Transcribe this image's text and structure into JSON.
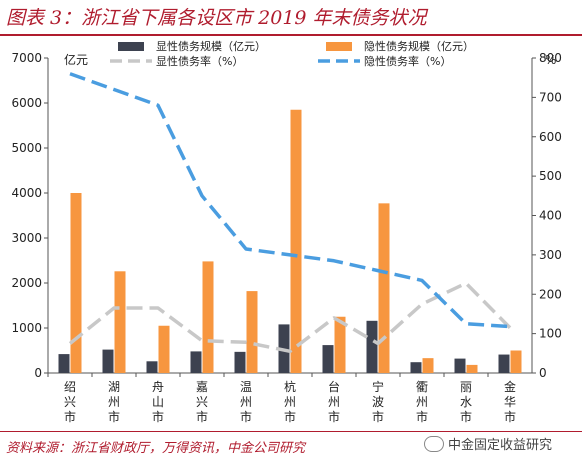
{
  "title": "图表 3：浙江省下属各设区市 2019 年末债务状况",
  "source": "资料来源：浙江省财政厅，万得资讯，中金公司研究",
  "watermark": "中金固定收益研究",
  "colors": {
    "explicit_bar": "#3d4250",
    "implicit_bar": "#f7963f",
    "explicit_rate": "#c8c8c8",
    "implicit_rate": "#4a9de0",
    "accent": "#b01c2e"
  },
  "chart_data": {
    "type": "bar",
    "categories": [
      "绍兴市",
      "湖州市",
      "舟山市",
      "嘉兴市",
      "温州市",
      "杭州市",
      "台州市",
      "宁波市",
      "衢州市",
      "丽水市",
      "金华市"
    ],
    "series": [
      {
        "name": "显性债务规模（亿元）",
        "kind": "bar",
        "axis": "left",
        "values": [
          420,
          520,
          260,
          480,
          470,
          1080,
          620,
          1160,
          240,
          320,
          410
        ]
      },
      {
        "name": "隐性债务规模（亿元）",
        "kind": "bar",
        "axis": "left",
        "values": [
          4000,
          2260,
          1050,
          2480,
          1820,
          5850,
          1250,
          3770,
          330,
          180,
          500
        ]
      },
      {
        "name": "显性债务率（%）",
        "kind": "line",
        "axis": "right",
        "values": [
          75,
          165,
          165,
          82,
          78,
          55,
          140,
          75,
          175,
          228,
          115
        ]
      },
      {
        "name": "隐性债务率（%）",
        "kind": "line",
        "axis": "right",
        "values": [
          760,
          720,
          680,
          450,
          315,
          300,
          285,
          260,
          235,
          125,
          118
        ]
      }
    ],
    "ylabel": "亿元",
    "y2label": "%",
    "ylim": [
      0,
      7000
    ],
    "y2lim": [
      0,
      800
    ],
    "yticks": [
      "0",
      "1000",
      "2000",
      "3000",
      "4000",
      "5000",
      "6000",
      "7000"
    ],
    "y2ticks": [
      "0",
      "100",
      "200",
      "300",
      "400",
      "500",
      "600",
      "700",
      "800"
    ],
    "legend": "top",
    "grid": false
  }
}
